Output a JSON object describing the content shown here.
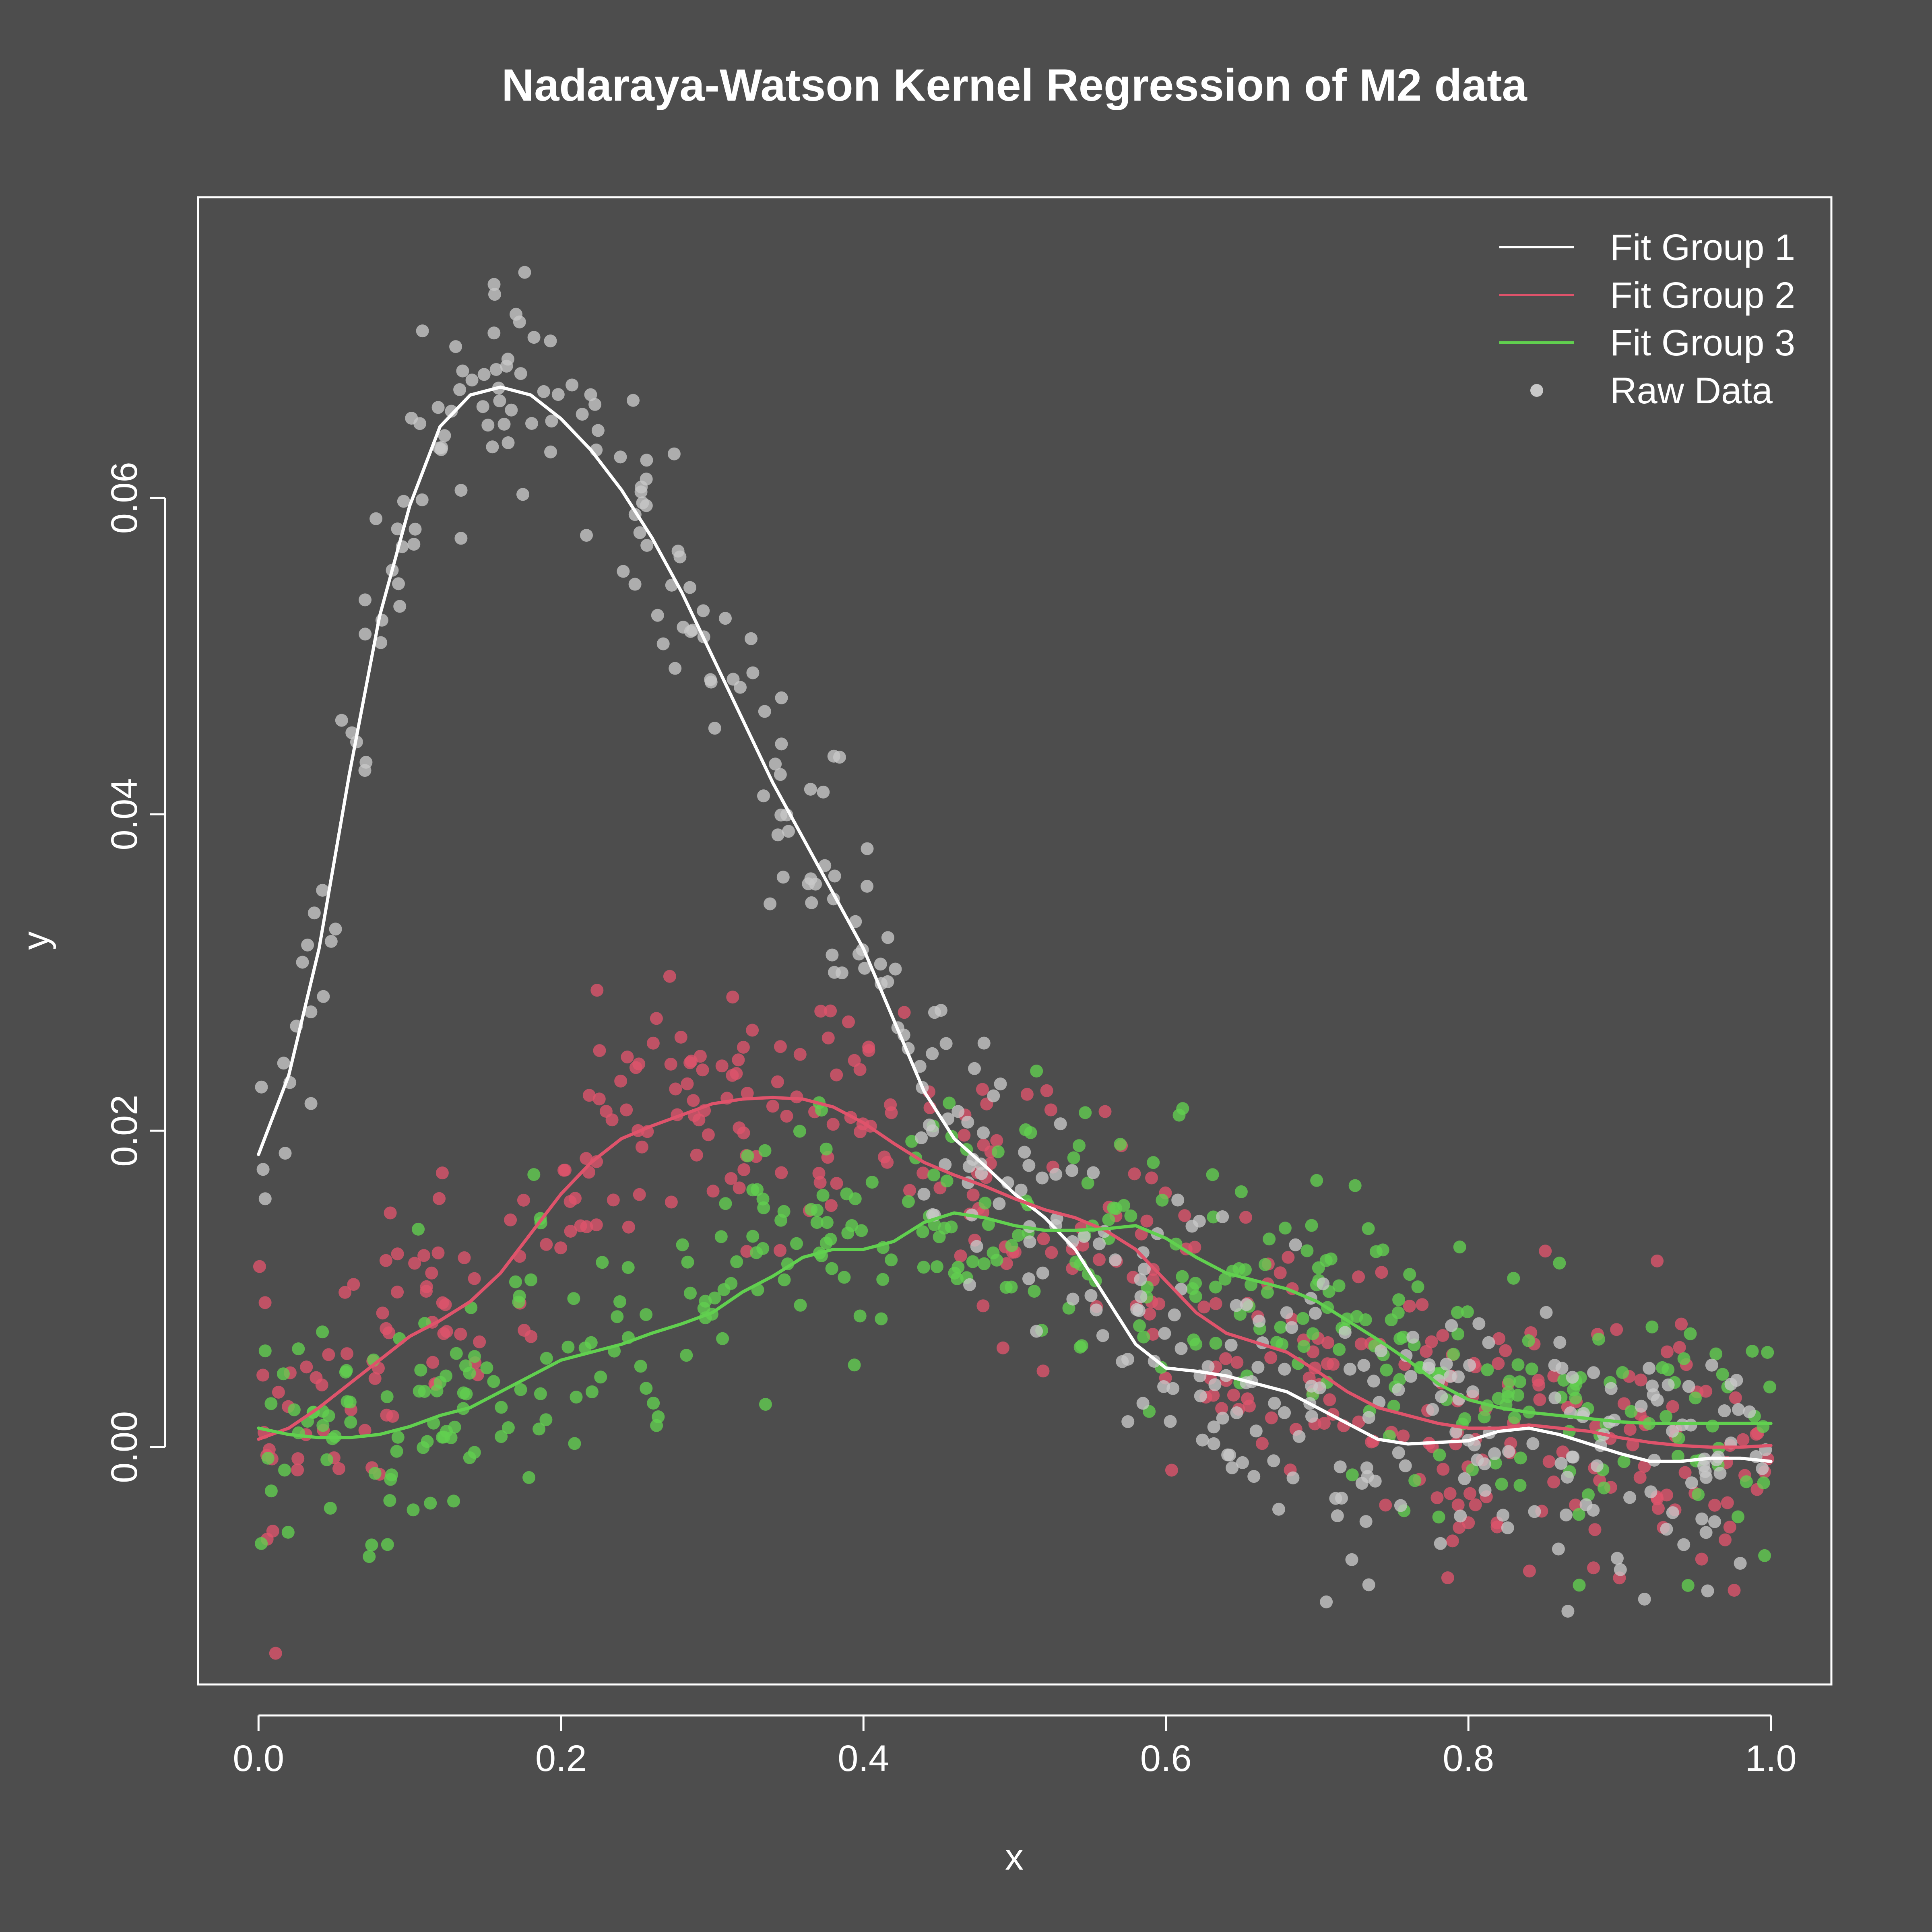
{
  "colors": {
    "background": "#4d4d4d",
    "foreground": "#ffffff",
    "group1": "#ffffff",
    "group2": "#df536b",
    "group3": "#61d04f",
    "raw": "#c8c8c8"
  },
  "chart_data": {
    "type": "scatter",
    "title": "Nadaraya-Watson Kernel Regression of M2 data",
    "xlabel": "x",
    "ylabel": "y",
    "xlim": [
      -0.04,
      1.04
    ],
    "ylim": [
      -0.015,
      0.079
    ],
    "x_ticks": [
      "0.0",
      "0.2",
      "0.4",
      "0.6",
      "0.8",
      "1.0"
    ],
    "y_ticks": [
      "0.00",
      "0.02",
      "0.04",
      "0.06"
    ],
    "grid": false,
    "legend_position": "top-right",
    "legend": [
      "Fit Group 1",
      "Fit Group 2",
      "Fit Group 3",
      "Raw Data"
    ],
    "fits": [
      {
        "name": "Fit Group 1",
        "color": "#ffffff",
        "x": [
          0.0,
          0.02,
          0.04,
          0.06,
          0.08,
          0.1,
          0.12,
          0.14,
          0.16,
          0.18,
          0.2,
          0.22,
          0.24,
          0.26,
          0.28,
          0.3,
          0.32,
          0.34,
          0.36,
          0.38,
          0.4,
          0.42,
          0.44,
          0.46,
          0.48,
          0.5,
          0.52,
          0.54,
          0.56,
          0.58,
          0.6,
          0.62,
          0.64,
          0.66,
          0.68,
          0.7,
          0.72,
          0.74,
          0.76,
          0.78,
          0.8,
          0.82,
          0.84,
          0.86,
          0.88,
          0.9,
          0.92,
          0.94,
          0.96,
          0.98,
          1.0
        ],
        "y": [
          0.0185,
          0.0235,
          0.0315,
          0.0425,
          0.0525,
          0.0595,
          0.0645,
          0.0665,
          0.067,
          0.0665,
          0.065,
          0.063,
          0.0605,
          0.0575,
          0.054,
          0.05,
          0.046,
          0.042,
          0.0385,
          0.035,
          0.0315,
          0.027,
          0.0225,
          0.0195,
          0.0178,
          0.016,
          0.0145,
          0.0125,
          0.0095,
          0.0065,
          0.005,
          0.0048,
          0.0045,
          0.004,
          0.0035,
          0.0025,
          0.0015,
          0.0005,
          0.0002,
          0.0003,
          0.0004,
          0.001,
          0.0012,
          0.0008,
          0.0002,
          -0.0004,
          -0.0009,
          -0.0009,
          -0.0007,
          -0.0007,
          -0.0009
        ]
      },
      {
        "name": "Fit Group 2",
        "color": "#df536b",
        "x": [
          0.0,
          0.02,
          0.04,
          0.06,
          0.08,
          0.1,
          0.12,
          0.14,
          0.16,
          0.18,
          0.2,
          0.22,
          0.24,
          0.26,
          0.28,
          0.3,
          0.32,
          0.34,
          0.36,
          0.38,
          0.4,
          0.42,
          0.44,
          0.46,
          0.48,
          0.5,
          0.52,
          0.54,
          0.56,
          0.58,
          0.6,
          0.62,
          0.64,
          0.66,
          0.68,
          0.7,
          0.72,
          0.74,
          0.76,
          0.78,
          0.8,
          0.82,
          0.84,
          0.86,
          0.88,
          0.9,
          0.92,
          0.94,
          0.96,
          0.98,
          1.0
        ],
        "y": [
          0.0005,
          0.0012,
          0.0025,
          0.004,
          0.0055,
          0.007,
          0.008,
          0.0092,
          0.011,
          0.0135,
          0.016,
          0.018,
          0.0195,
          0.0203,
          0.021,
          0.0217,
          0.022,
          0.0221,
          0.022,
          0.0215,
          0.0205,
          0.0192,
          0.018,
          0.0172,
          0.0165,
          0.0157,
          0.015,
          0.0145,
          0.0137,
          0.0125,
          0.0105,
          0.0085,
          0.0072,
          0.0066,
          0.006,
          0.0048,
          0.0035,
          0.0025,
          0.002,
          0.0015,
          0.0012,
          0.0012,
          0.0014,
          0.0012,
          0.001,
          0.0006,
          0.0003,
          0.0001,
          0.0,
          0.0,
          0.0001
        ]
      },
      {
        "name": "Fit Group 3",
        "color": "#61d04f",
        "x": [
          0.0,
          0.02,
          0.04,
          0.06,
          0.08,
          0.1,
          0.12,
          0.14,
          0.16,
          0.18,
          0.2,
          0.22,
          0.24,
          0.26,
          0.28,
          0.3,
          0.32,
          0.34,
          0.36,
          0.38,
          0.4,
          0.42,
          0.44,
          0.46,
          0.48,
          0.5,
          0.52,
          0.54,
          0.56,
          0.58,
          0.6,
          0.62,
          0.64,
          0.66,
          0.68,
          0.7,
          0.72,
          0.74,
          0.76,
          0.78,
          0.8,
          0.82,
          0.84,
          0.86,
          0.88,
          0.9,
          0.92,
          0.94,
          0.96,
          0.98,
          1.0
        ],
        "y": [
          0.0012,
          0.0008,
          0.0006,
          0.0006,
          0.0008,
          0.0013,
          0.002,
          0.0025,
          0.0035,
          0.0045,
          0.0055,
          0.006,
          0.0065,
          0.0072,
          0.0078,
          0.0085,
          0.0098,
          0.0108,
          0.012,
          0.0125,
          0.0125,
          0.013,
          0.0142,
          0.0148,
          0.0145,
          0.014,
          0.0137,
          0.0137,
          0.0138,
          0.014,
          0.0132,
          0.012,
          0.011,
          0.0105,
          0.01,
          0.0092,
          0.008,
          0.0068,
          0.0055,
          0.004,
          0.003,
          0.0025,
          0.0022,
          0.002,
          0.0018,
          0.0016,
          0.0015,
          0.0015,
          0.0015,
          0.0015,
          0.0015
        ]
      }
    ],
    "raw_data": {
      "name": "Raw Data",
      "points_per_group": 400,
      "noise_sd": 0.004,
      "note_colors": [
        "#c8c8c8",
        "#df536b",
        "#61d04f"
      ]
    }
  }
}
